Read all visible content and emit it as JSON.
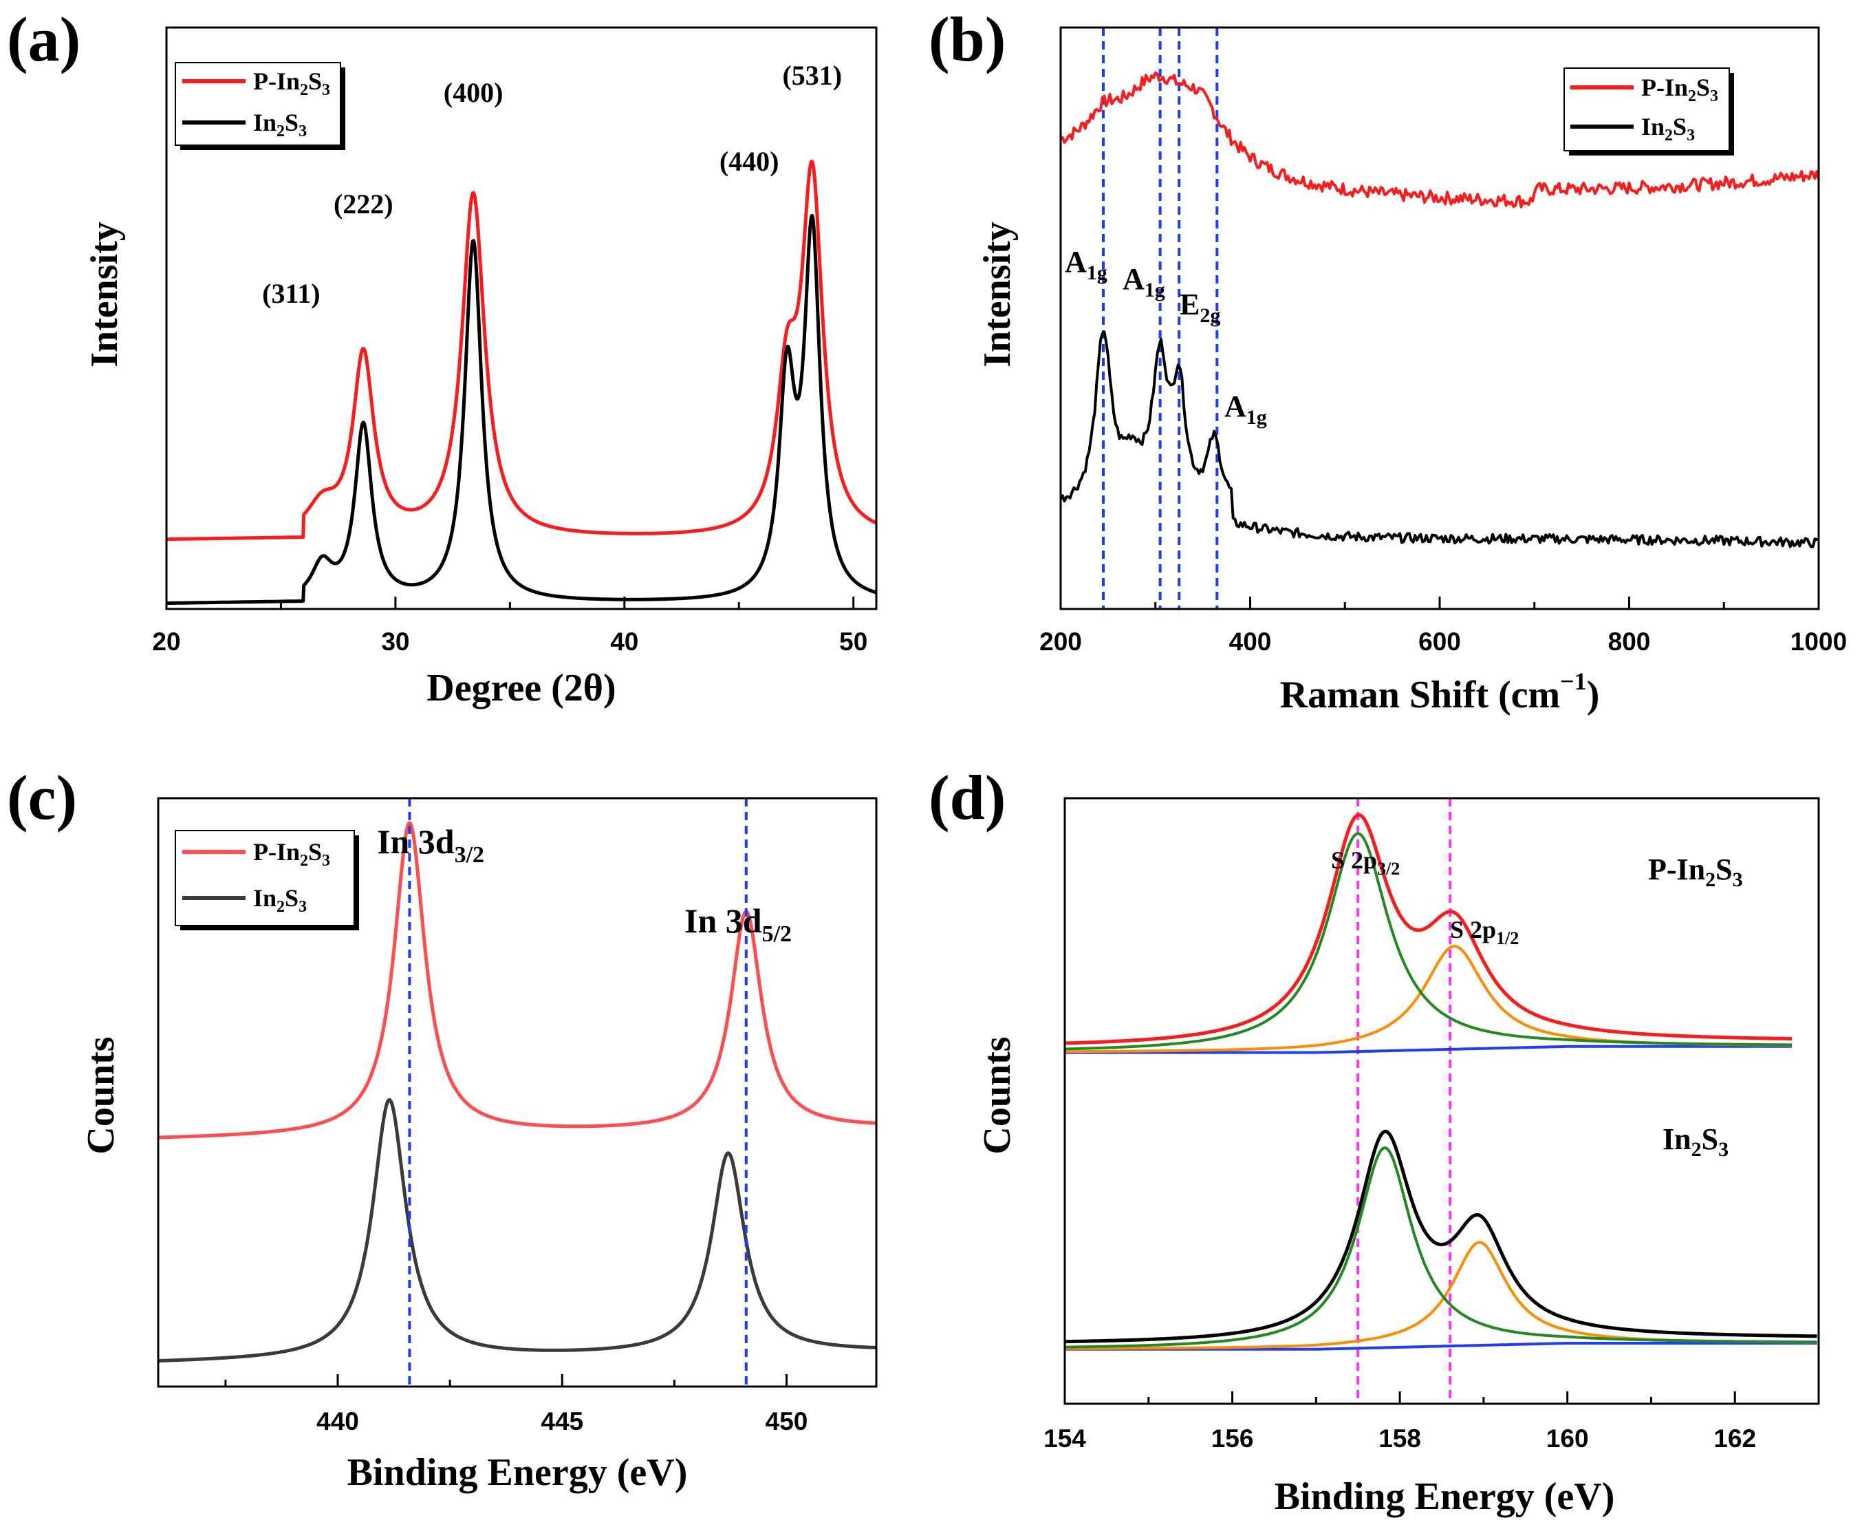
{
  "chart_data": [
    {
      "id": "a",
      "type": "line",
      "panel_label": "(a)",
      "xlabel": "Degree (2θ)",
      "ylabel": "Intensity",
      "xlim": [
        20,
        51
      ],
      "xticks": [
        20,
        30,
        40,
        50
      ],
      "tick_labels": [
        "20",
        "30",
        "40",
        "50"
      ],
      "legend_position": "top-left",
      "colors": {
        "P-In2S3": "#ff1a1a",
        "In2S3": "#000000"
      },
      "series": [
        {
          "name": "P-In2S3",
          "legend": {
            "base": "P-In",
            "s1": "2",
            "mid": "S",
            "s2": "3"
          },
          "baseline": 0.12,
          "offset": 0.6,
          "peaks": [
            [
              26.8,
              0.05,
              0.8
            ],
            [
              28.6,
              0.31,
              0.55
            ],
            [
              33.4,
              0.59,
              0.6
            ],
            [
              47.1,
              0.24,
              0.55
            ],
            [
              48.2,
              0.6,
              0.55
            ]
          ]
        },
        {
          "name": "In2S3",
          "legend": {
            "base": "In",
            "s1": "2",
            "mid": "S",
            "s2": "3"
          },
          "baseline": 0.01,
          "offset": 0.0,
          "peaks": [
            [
              26.8,
              0.06,
              0.55
            ],
            [
              28.6,
              0.3,
              0.45
            ],
            [
              33.4,
              0.62,
              0.45
            ],
            [
              47.1,
              0.36,
              0.42
            ],
            [
              48.2,
              0.62,
              0.42
            ]
          ]
        }
      ],
      "peak_labels": [
        {
          "text": "(311)",
          "x": 26.8
        },
        {
          "text": "(222)",
          "x": 28.6
        },
        {
          "text": "(400)",
          "x": 33.4
        },
        {
          "text": "(440)",
          "x": 47.1
        },
        {
          "text": "(531)",
          "x": 48.2
        }
      ]
    },
    {
      "id": "b",
      "type": "line",
      "panel_label": "(b)",
      "xlabel": "Raman Shift (cm",
      "xlabel_sup": "−1",
      "xlabel_end": ")",
      "ylabel": "Intensity",
      "xlim": [
        200,
        1000
      ],
      "xticks": [
        200,
        400,
        600,
        800,
        1000
      ],
      "tick_labels": [
        "200",
        "400",
        "600",
        "800",
        "1000"
      ],
      "reference_lines_x": [
        245,
        305,
        325,
        365
      ],
      "legend_position": "top-right",
      "colors": {
        "P-In2S3": "#ff1a1a",
        "In2S3": "#000000",
        "ref": "#1a3cff"
      },
      "series": [
        {
          "name": "P-In2S3",
          "legend": {
            "base": "P-In",
            "s1": "2",
            "mid": "S",
            "s2": "3"
          },
          "offset": 0.5
        },
        {
          "name": "In2S3",
          "legend": {
            "base": "In",
            "s1": "2",
            "mid": "S",
            "s2": "3"
          },
          "offset": 0.0
        }
      ],
      "peak_labels": [
        {
          "main": "A",
          "sub": "1g",
          "x": 245
        },
        {
          "main": "A",
          "sub": "1g",
          "x": 305
        },
        {
          "main": "E",
          "sub": "2g",
          "x": 325
        },
        {
          "main": "A",
          "sub": "1g",
          "x": 365
        }
      ]
    },
    {
      "id": "c",
      "type": "line",
      "panel_label": "(c)",
      "xlabel": "Binding Energy (eV)",
      "ylabel": "Counts",
      "xlim": [
        436,
        452
      ],
      "xticks": [
        440,
        445,
        450
      ],
      "tick_labels": [
        "440",
        "445",
        "450"
      ],
      "reference_lines_x": [
        441.6,
        449.1
      ],
      "legend_position": "top-left",
      "colors": {
        "P-In2S3": "#ff4d4d",
        "In2S3": "#3a3a3a",
        "ref": "#1a3cff"
      },
      "series": [
        {
          "name": "P-In2S3",
          "legend": {
            "base": "P-In",
            "s1": "2",
            "mid": "S",
            "s2": "3"
          },
          "baseline": 0.42,
          "peaks": [
            [
              441.6,
              0.53,
              0.42
            ],
            [
              449.1,
              0.37,
              0.42
            ]
          ]
        },
        {
          "name": "In2S3",
          "legend": {
            "base": "In",
            "s1": "2",
            "mid": "S",
            "s2": "3"
          },
          "baseline": 0.04,
          "peaks": [
            [
              441.15,
              0.44,
              0.45
            ],
            [
              448.7,
              0.34,
              0.45
            ]
          ]
        }
      ],
      "peak_labels": [
        {
          "main": "In 3d",
          "sub": "3/2",
          "x": 441.6
        },
        {
          "main": "In 3d",
          "sub": "5/2",
          "x": 449.1
        }
      ]
    },
    {
      "id": "d",
      "type": "line",
      "panel_label": "(d)",
      "xlabel": "Binding Energy (eV)",
      "ylabel": "Counts",
      "xlim": [
        154,
        163
      ],
      "xticks": [
        154,
        156,
        158,
        160,
        162
      ],
      "tick_labels": [
        "154",
        "156",
        "158",
        "160",
        "162"
      ],
      "reference_lines_x": [
        157.5,
        158.6
      ],
      "colors": {
        "P-In2S3": "#ff1a1a",
        "In2S3": "#000000",
        "fit_p32": "#1f8a1f",
        "fit_p12": "#ff8c00",
        "background": "#1a3cff",
        "ref": "#ff33ff"
      },
      "series": [
        {
          "name": "P-In2S3",
          "label": {
            "base": "P-In",
            "s1": "2",
            "mid": "S",
            "s2": "3"
          },
          "xmax": 162.7,
          "bg_start": 0.58,
          "bg_end": 0.59,
          "components": [
            [
              157.5,
              0.36,
              0.45
            ],
            [
              158.65,
              0.17,
              0.45
            ]
          ]
        },
        {
          "name": "In2S3",
          "label": {
            "base": "In",
            "s1": "2",
            "mid": "S",
            "s2": "3"
          },
          "xmax": 163.0,
          "bg_start": 0.09,
          "bg_end": 0.1,
          "components": [
            [
              157.82,
              0.33,
              0.4
            ],
            [
              158.95,
              0.17,
              0.4
            ]
          ]
        }
      ],
      "peak_labels": [
        {
          "main": "S 2p",
          "sub": "3/2",
          "x": 157.5
        },
        {
          "main": "S 2p",
          "sub": "1/2",
          "x": 158.6
        }
      ]
    }
  ]
}
